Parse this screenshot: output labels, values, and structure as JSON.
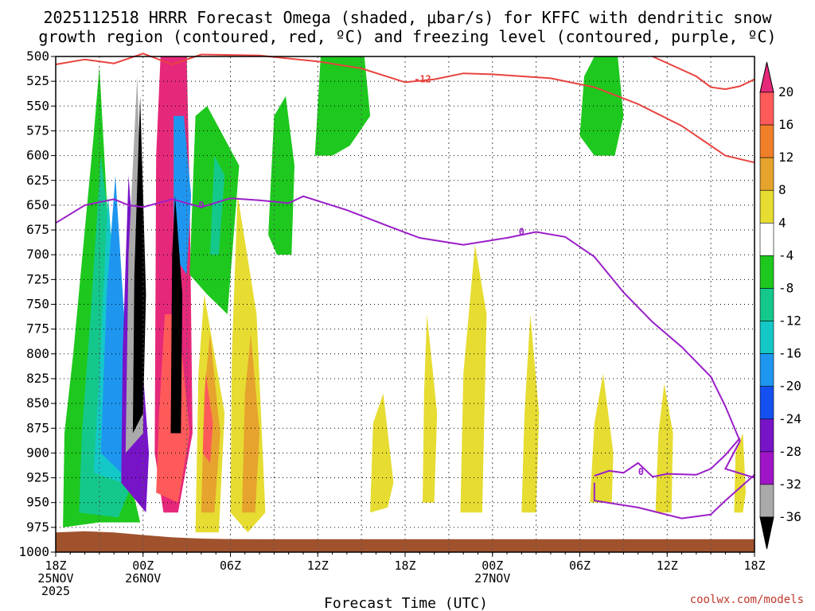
{
  "chart_data": {
    "type": "heatmap",
    "title_lines": [
      "2025112518 HRRR Forecast Omega (shaded, μbar/s) for KFFC with dendritic snow",
      "growth region (contoured, red, ºC) and freezing level (contoured, purple, ºC)"
    ],
    "xlabel": "Forecast Time (UTC)",
    "x_hours_range": [
      0,
      48
    ],
    "x_ticks": [
      {
        "hour": 0,
        "lines": [
          "18Z",
          "25NOV",
          "2025"
        ]
      },
      {
        "hour": 6,
        "lines": [
          "00Z",
          "26NOV"
        ]
      },
      {
        "hour": 12,
        "lines": [
          "06Z"
        ]
      },
      {
        "hour": 18,
        "lines": [
          "12Z"
        ]
      },
      {
        "hour": 24,
        "lines": [
          "18Z"
        ]
      },
      {
        "hour": 30,
        "lines": [
          "00Z",
          "27NOV"
        ]
      },
      {
        "hour": 36,
        "lines": [
          "06Z"
        ]
      },
      {
        "hour": 42,
        "lines": [
          "12Z"
        ]
      },
      {
        "hour": 48,
        "lines": [
          "18Z"
        ]
      }
    ],
    "y_ticks": [
      500,
      525,
      550,
      575,
      600,
      625,
      650,
      675,
      700,
      725,
      750,
      775,
      800,
      825,
      850,
      875,
      900,
      925,
      950,
      975,
      1000
    ],
    "ylim": [
      500,
      1000
    ],
    "colorbar": {
      "labels": [
        20,
        16,
        12,
        8,
        4,
        -4,
        -8,
        -12,
        -16,
        -20,
        -24,
        -28,
        -32,
        -36
      ],
      "colors": [
        "#ff5a5a",
        "#f07f2a",
        "#e6a32d",
        "#e6dc32",
        "#ffffff",
        "#1ec81e",
        "#14c88c",
        "#14c8c8",
        "#1e96f0",
        "#1450f0",
        "#7814c8",
        "#a014c8",
        "#aaaaaa"
      ],
      "top_color": "#e6287a",
      "bottom_color": "#000000"
    },
    "contours": [
      {
        "label": "-12",
        "color": "#e8433f",
        "points": [
          [
            0,
            508
          ],
          [
            2,
            503
          ],
          [
            4,
            507
          ],
          [
            6,
            497
          ],
          [
            8,
            508
          ],
          [
            10,
            498
          ],
          [
            14,
            499
          ],
          [
            18,
            505
          ],
          [
            21,
            512
          ],
          [
            24,
            526
          ],
          [
            26,
            523
          ],
          [
            28,
            517
          ],
          [
            30,
            518
          ],
          [
            34,
            522
          ],
          [
            37,
            531
          ],
          [
            40,
            548
          ],
          [
            43,
            570
          ],
          [
            46,
            600
          ],
          [
            48,
            607
          ]
        ]
      },
      {
        "label": "-12",
        "color": "#e8433f",
        "points": [
          [
            41,
            500
          ],
          [
            44,
            520
          ],
          [
            45,
            531
          ],
          [
            46,
            533
          ],
          [
            47,
            530
          ],
          [
            48,
            523
          ]
        ]
      },
      {
        "label": "0",
        "color": "#9a1ec8",
        "points": [
          [
            0,
            668
          ],
          [
            2,
            650
          ],
          [
            4,
            644
          ],
          [
            5,
            650
          ],
          [
            6,
            652
          ],
          [
            8,
            644
          ],
          [
            10,
            652
          ],
          [
            12,
            643
          ],
          [
            14,
            645
          ],
          [
            16,
            648
          ],
          [
            17,
            641
          ],
          [
            20,
            655
          ],
          [
            23,
            672
          ],
          [
            25,
            683
          ],
          [
            28,
            690
          ],
          [
            31,
            683
          ],
          [
            33,
            677
          ],
          [
            35,
            682
          ],
          [
            37,
            702
          ],
          [
            39,
            738
          ],
          [
            41,
            768
          ],
          [
            43,
            793
          ],
          [
            45,
            823
          ],
          [
            46,
            853
          ],
          [
            47,
            888
          ],
          [
            46,
            916
          ],
          [
            48,
            925
          ]
        ]
      },
      {
        "label": "0",
        "color": "#9a1ec8",
        "points": [
          [
            37,
            923
          ],
          [
            38,
            918
          ],
          [
            39,
            920
          ],
          [
            40,
            910
          ],
          [
            41,
            924
          ],
          [
            42,
            921
          ],
          [
            44,
            922
          ],
          [
            45,
            916
          ],
          [
            46,
            902
          ],
          [
            47,
            885
          ]
        ]
      },
      {
        "label": "",
        "color": "#9a1ec8",
        "points": [
          [
            37,
            930
          ],
          [
            37,
            948
          ],
          [
            40,
            955
          ],
          [
            43,
            966
          ],
          [
            45,
            962
          ],
          [
            46,
            948
          ],
          [
            48,
            922
          ]
        ]
      }
    ],
    "label_positions": [
      {
        "label": "-12",
        "x": 25.2,
        "y": 523,
        "color": "#e8433f"
      },
      {
        "label": "0",
        "x": 10.0,
        "y": 650,
        "color": "#9a1ec8"
      },
      {
        "label": "0",
        "x": 32.0,
        "y": 677,
        "color": "#9a1ec8"
      },
      {
        "label": "0",
        "x": 40.2,
        "y": 919,
        "color": "#9a1ec8"
      }
    ],
    "shaded_blobs": [
      {
        "color": "#1ec81e",
        "points": [
          [
            0.5,
            975
          ],
          [
            0.6,
            880
          ],
          [
            1.2,
            800
          ],
          [
            2.6,
            580
          ],
          [
            3,
            510
          ],
          [
            4.2,
            830
          ],
          [
            5,
            920
          ],
          [
            5.8,
            970
          ],
          [
            3,
            970
          ]
        ]
      },
      {
        "color": "#14c88c",
        "points": [
          [
            1.6,
            960
          ],
          [
            1.8,
            880
          ],
          [
            2.4,
            760
          ],
          [
            3.1,
            600
          ],
          [
            4.4,
            760
          ],
          [
            5,
            940
          ],
          [
            4.3,
            965
          ]
        ]
      },
      {
        "color": "#14c8c8",
        "points": [
          [
            2.6,
            920
          ],
          [
            3,
            820
          ],
          [
            3.6,
            640
          ],
          [
            4.8,
            880
          ],
          [
            4.6,
            930
          ]
        ]
      },
      {
        "color": "#1e96f0",
        "points": [
          [
            3.1,
            900
          ],
          [
            3.5,
            740
          ],
          [
            4.1,
            620
          ],
          [
            5.2,
            880
          ],
          [
            4.5,
            920
          ]
        ]
      },
      {
        "color": "#7814c8",
        "points": [
          [
            4.5,
            930
          ],
          [
            4.6,
            800
          ],
          [
            5,
            620
          ],
          [
            6.4,
            900
          ],
          [
            6.2,
            960
          ]
        ]
      },
      {
        "color": "#aaaaaa",
        "points": [
          [
            4.8,
            900
          ],
          [
            5,
            700
          ],
          [
            5.6,
            520
          ],
          [
            6.1,
            760
          ],
          [
            6,
            880
          ]
        ]
      },
      {
        "color": "#000000",
        "points": [
          [
            5.3,
            880
          ],
          [
            5.4,
            720
          ],
          [
            5.8,
            540
          ],
          [
            6.2,
            740
          ],
          [
            6,
            860
          ]
        ]
      },
      {
        "color": "#e6287a",
        "points": [
          [
            6.8,
            900
          ],
          [
            6.9,
            600
          ],
          [
            7.2,
            500
          ],
          [
            9,
            500
          ],
          [
            9.2,
            640
          ],
          [
            9.4,
            880
          ],
          [
            8.4,
            960
          ],
          [
            7.4,
            960
          ]
        ]
      },
      {
        "color": "#ff5a5a",
        "points": [
          [
            6.9,
            940
          ],
          [
            7.1,
            860
          ],
          [
            7.5,
            760
          ],
          [
            8.4,
            760
          ],
          [
            9.2,
            880
          ],
          [
            8.4,
            950
          ]
        ]
      },
      {
        "color": "#1e96f0",
        "points": [
          [
            8.1,
            700
          ],
          [
            8.1,
            560
          ],
          [
            8.8,
            560
          ],
          [
            9.3,
            640
          ],
          [
            9,
            720
          ]
        ]
      },
      {
        "color": "#000000",
        "points": [
          [
            7.9,
            880
          ],
          [
            8,
            700
          ],
          [
            8.2,
            640
          ],
          [
            8.7,
            740
          ],
          [
            8.6,
            880
          ]
        ]
      },
      {
        "color": "#1ec81e",
        "points": [
          [
            9.2,
            720
          ],
          [
            9.6,
            560
          ],
          [
            10.4,
            550
          ],
          [
            12.6,
            610
          ],
          [
            11.8,
            760
          ],
          [
            10.4,
            740
          ]
        ]
      },
      {
        "color": "#14c88c",
        "points": [
          [
            10.6,
            700
          ],
          [
            10.9,
            600
          ],
          [
            11.6,
            620
          ],
          [
            11.2,
            700
          ]
        ]
      },
      {
        "color": "#e6dc32",
        "points": [
          [
            9.6,
            980
          ],
          [
            9.8,
            820
          ],
          [
            10.2,
            740
          ],
          [
            11.6,
            860
          ],
          [
            11.2,
            980
          ]
        ]
      },
      {
        "color": "#e6a32d",
        "points": [
          [
            10,
            960
          ],
          [
            10.2,
            840
          ],
          [
            10.6,
            780
          ],
          [
            11.3,
            880
          ],
          [
            10.9,
            960
          ]
        ]
      },
      {
        "color": "#ff5a5a",
        "points": [
          [
            10.1,
            900
          ],
          [
            10.3,
            820
          ],
          [
            10.8,
            870
          ],
          [
            10.6,
            910
          ]
        ]
      },
      {
        "color": "#e6dc32",
        "points": [
          [
            12,
            960
          ],
          [
            12.1,
            800
          ],
          [
            12.5,
            640
          ],
          [
            13.8,
            760
          ],
          [
            14.4,
            960
          ],
          [
            13.2,
            980
          ]
        ]
      },
      {
        "color": "#e6a32d",
        "points": [
          [
            12.8,
            960
          ],
          [
            13,
            840
          ],
          [
            13.4,
            780
          ],
          [
            14,
            880
          ],
          [
            13.7,
            960
          ]
        ]
      },
      {
        "color": "#1ec81e",
        "points": [
          [
            14.6,
            680
          ],
          [
            15,
            560
          ],
          [
            15.8,
            540
          ],
          [
            16.4,
            610
          ],
          [
            16.2,
            700
          ],
          [
            15.2,
            700
          ]
        ]
      },
      {
        "color": "#1ec81e",
        "points": [
          [
            17.8,
            600
          ],
          [
            18.2,
            500
          ],
          [
            21.2,
            500
          ],
          [
            21.6,
            560
          ],
          [
            20.2,
            590
          ],
          [
            19,
            600
          ]
        ]
      },
      {
        "color": "#e6dc32",
        "points": [
          [
            21.6,
            960
          ],
          [
            21.8,
            870
          ],
          [
            22.5,
            840
          ],
          [
            23.2,
            930
          ],
          [
            22.8,
            955
          ]
        ]
      },
      {
        "color": "#e6dc32",
        "points": [
          [
            25.2,
            950
          ],
          [
            25.3,
            840
          ],
          [
            25.5,
            760
          ],
          [
            26.2,
            860
          ],
          [
            26,
            950
          ]
        ]
      },
      {
        "color": "#e6dc32",
        "points": [
          [
            27.8,
            960
          ],
          [
            28,
            820
          ],
          [
            28.8,
            690
          ],
          [
            29.6,
            760
          ],
          [
            29.3,
            960
          ]
        ]
      },
      {
        "color": "#e6dc32",
        "points": [
          [
            32,
            960
          ],
          [
            32.2,
            860
          ],
          [
            32.6,
            760
          ],
          [
            33.2,
            860
          ],
          [
            33,
            960
          ]
        ]
      },
      {
        "color": "#e6dc32",
        "points": [
          [
            36.7,
            950
          ],
          [
            37,
            870
          ],
          [
            37.6,
            820
          ],
          [
            38.3,
            900
          ],
          [
            38.2,
            950
          ]
        ]
      },
      {
        "color": "#e6dc32",
        "points": [
          [
            41.2,
            960
          ],
          [
            41.4,
            880
          ],
          [
            41.8,
            830
          ],
          [
            42.4,
            880
          ],
          [
            42.3,
            960
          ]
        ]
      },
      {
        "color": "#1ec81e",
        "points": [
          [
            36,
            580
          ],
          [
            36.3,
            520
          ],
          [
            37,
            500
          ],
          [
            38.6,
            500
          ],
          [
            39,
            560
          ],
          [
            38.4,
            600
          ],
          [
            37,
            600
          ]
        ]
      },
      {
        "color": "#e6dc32",
        "points": [
          [
            46.6,
            960
          ],
          [
            46.7,
            900
          ],
          [
            47.2,
            880
          ],
          [
            47.4,
            940
          ],
          [
            47.2,
            960
          ]
        ]
      }
    ],
    "ground_color": "#a0522d"
  },
  "credit": "coolwx.com/models"
}
